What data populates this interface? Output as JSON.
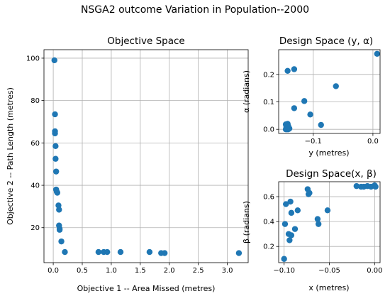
{
  "suptitle": "NSGA2 outcome Variation in Population--2000",
  "chart_data": [
    {
      "id": "objective",
      "type": "scatter",
      "title": "Objective Space",
      "xlabel": "Objective 1 -- Area Missed (metres)",
      "ylabel": "Objective 2 -- Path Length (metres)",
      "xlim": [
        -0.16,
        3.36
      ],
      "ylim": [
        3.5,
        104
      ],
      "xticks": [
        0.0,
        0.5,
        1.0,
        1.5,
        2.0,
        2.5,
        3.0
      ],
      "yticks": [
        20,
        40,
        60,
        80,
        100
      ],
      "xtick_labels": [
        "0.0",
        "0.5",
        "1.0",
        "1.5",
        "2.0",
        "2.5",
        "3.0"
      ],
      "ytick_labels": [
        "20",
        "40",
        "60",
        "80",
        "100"
      ],
      "grid": true,
      "color": "#1f77b4",
      "x": [
        0.02,
        0.03,
        0.03,
        0.03,
        0.04,
        0.04,
        0.05,
        0.05,
        0.06,
        0.07,
        0.09,
        0.1,
        0.1,
        0.11,
        0.11,
        0.14,
        0.2,
        0.78,
        0.87,
        0.93,
        1.16,
        1.66,
        1.86,
        1.92,
        3.2
      ],
      "y": [
        99,
        73.5,
        65.5,
        64.5,
        58.5,
        52.5,
        46.5,
        38,
        37,
        36.5,
        30.5,
        28.5,
        21,
        19.5,
        19,
        13.5,
        8.5,
        8.5,
        8.5,
        8.5,
        8.5,
        8.5,
        8,
        8,
        8
      ]
    },
    {
      "id": "design_y_alpha",
      "type": "scatter",
      "title": "Design Space (y, α)",
      "xlabel": "y (metres)",
      "ylabel": "α (radians)",
      "xlim": [
        -0.158,
        0.012
      ],
      "ylim": [
        -0.015,
        0.29
      ],
      "xticks": [
        -0.1,
        0.0
      ],
      "yticks": [
        0.0,
        0.1,
        0.2
      ],
      "xtick_labels": [
        "−0.1",
        "0.0"
      ],
      "ytick_labels": [
        "0.0",
        "0.1",
        "0.2"
      ],
      "grid": true,
      "color": "#1f77b4",
      "x": [
        -0.146,
        -0.145,
        -0.145,
        -0.144,
        -0.143,
        -0.142,
        -0.141,
        -0.145,
        -0.144,
        -0.142,
        -0.14,
        -0.146,
        -0.143,
        -0.143,
        -0.132,
        -0.132,
        -0.115,
        -0.105,
        -0.087,
        -0.062,
        0.007
      ],
      "y": [
        0.0,
        0.005,
        0.01,
        0.015,
        0.02,
        0.0,
        0.005,
        0.008,
        0.0,
        0.012,
        0.003,
        0.018,
        0.01,
        0.213,
        0.219,
        0.077,
        0.103,
        0.054,
        0.016,
        0.157,
        0.275
      ]
    },
    {
      "id": "design_x_beta",
      "type": "scatter",
      "title": "Design Space(x, β)",
      "xlabel": "x (metres)",
      "ylabel": "β (radians)",
      "xlim": [
        -0.106,
        0.006
      ],
      "ylim": [
        0.07,
        0.72
      ],
      "xticks": [
        -0.1,
        -0.05,
        0.0
      ],
      "yticks": [
        0.2,
        0.4,
        0.6
      ],
      "xtick_labels": [
        "−0.10",
        "−0.05",
        "0.00"
      ],
      "ytick_labels": [
        "0.2",
        "0.4",
        "0.6"
      ],
      "grid": true,
      "color": "#1f77b4",
      "x": [
        -0.1,
        -0.099,
        -0.098,
        -0.095,
        -0.094,
        -0.093,
        -0.092,
        -0.092,
        -0.088,
        -0.085,
        -0.074,
        -0.073,
        -0.072,
        -0.063,
        -0.062,
        -0.052,
        -0.02,
        -0.015,
        -0.012,
        -0.008,
        -0.004,
        0.0,
        0.001
      ],
      "y": [
        0.1,
        0.38,
        0.54,
        0.3,
        0.25,
        0.56,
        0.47,
        0.29,
        0.34,
        0.49,
        0.66,
        0.62,
        0.63,
        0.42,
        0.38,
        0.49,
        0.685,
        0.68,
        0.68,
        0.685,
        0.68,
        0.69,
        0.68
      ]
    }
  ]
}
